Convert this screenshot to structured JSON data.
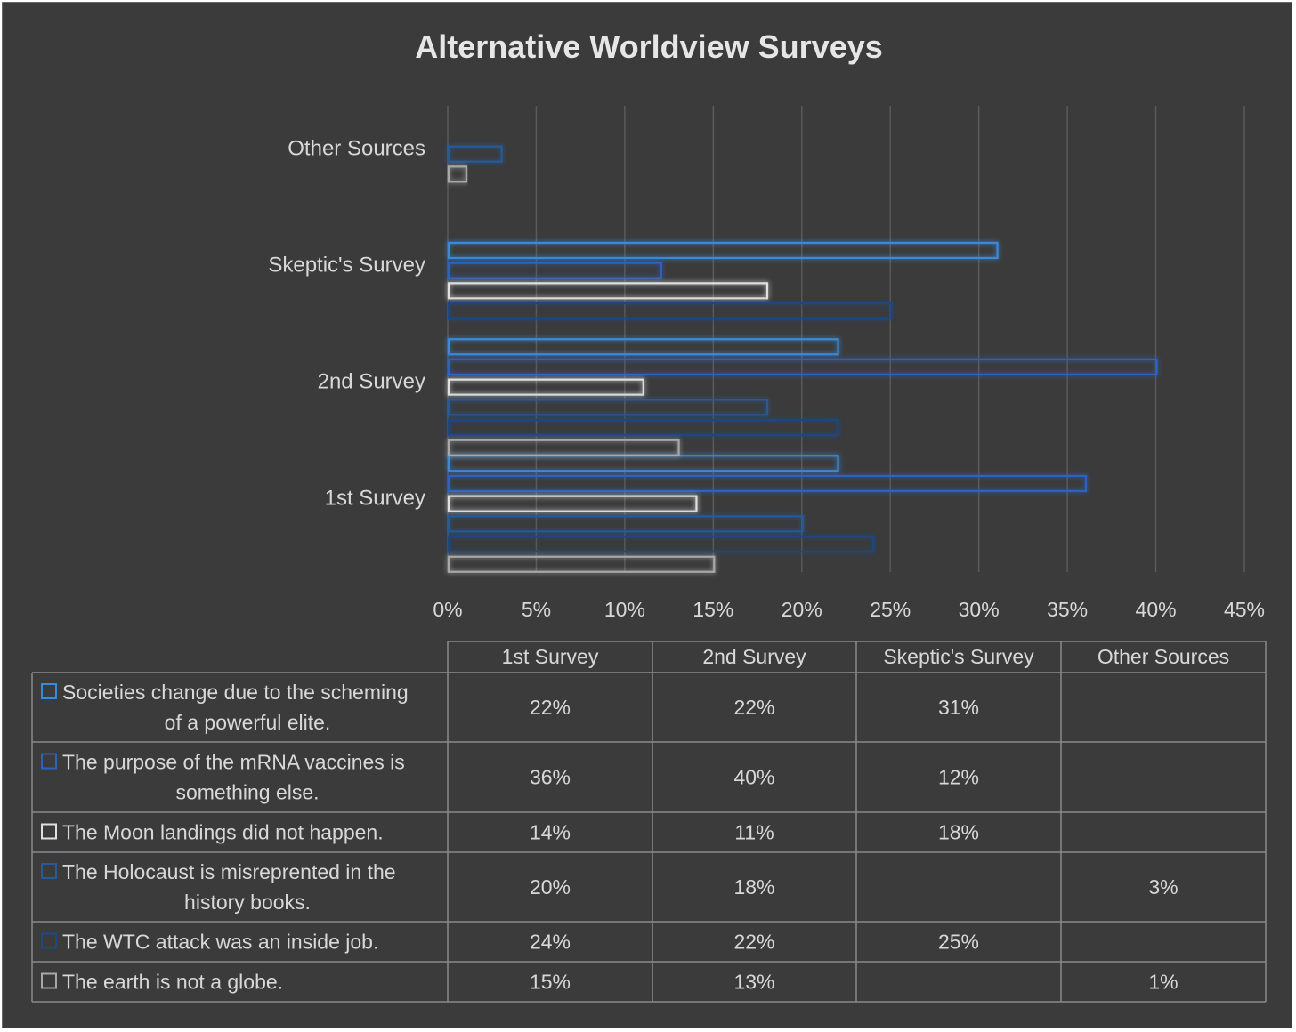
{
  "colors": {
    "background": "#3b3b3b",
    "grid": "#5a5a5a",
    "text": "#d8d8d8",
    "title": "#e6e6e6",
    "table_border": "#8a8a8a"
  },
  "chart_data": {
    "type": "bar",
    "orientation": "horizontal",
    "title": "Alternative Worldview Surveys",
    "categories": [
      "1st Survey",
      "2nd Survey",
      "Skeptic's Survey",
      "Other Sources"
    ],
    "xlim": [
      0,
      45
    ],
    "x_ticks": [
      "0%",
      "5%",
      "10%",
      "15%",
      "20%",
      "25%",
      "30%",
      "35%",
      "40%",
      "45%"
    ],
    "grid": true,
    "legend": "data-table",
    "series": [
      {
        "name": "Societies change due to the scheming of a powerful elite.",
        "color": "#3b8ad9",
        "values": [
          22,
          22,
          31,
          null
        ],
        "labels": [
          "22%",
          "22%",
          "31%",
          ""
        ]
      },
      {
        "name": "The purpose of the mRNA vaccines is something else.",
        "color": "#2e62c0",
        "values": [
          36,
          40,
          12,
          null
        ],
        "labels": [
          "36%",
          "40%",
          "12%",
          ""
        ]
      },
      {
        "name": "The Moon landings did not happen.",
        "color": "#e0e0e0",
        "values": [
          14,
          11,
          18,
          null
        ],
        "labels": [
          "14%",
          "11%",
          "18%",
          ""
        ]
      },
      {
        "name": "The Holocaust is misreprented in the history books.",
        "color": "#285a98",
        "values": [
          20,
          18,
          null,
          3
        ],
        "labels": [
          "20%",
          "18%",
          "",
          "3%"
        ]
      },
      {
        "name": "The WTC attack was an inside job.",
        "color": "#1f4784",
        "values": [
          24,
          22,
          25,
          null
        ],
        "labels": [
          "24%",
          "22%",
          "25%",
          ""
        ]
      },
      {
        "name": "The earth is not a globe.",
        "color": "#a8a8a8",
        "values": [
          15,
          13,
          null,
          1
        ],
        "labels": [
          "15%",
          "13%",
          "",
          "1%"
        ]
      }
    ]
  }
}
